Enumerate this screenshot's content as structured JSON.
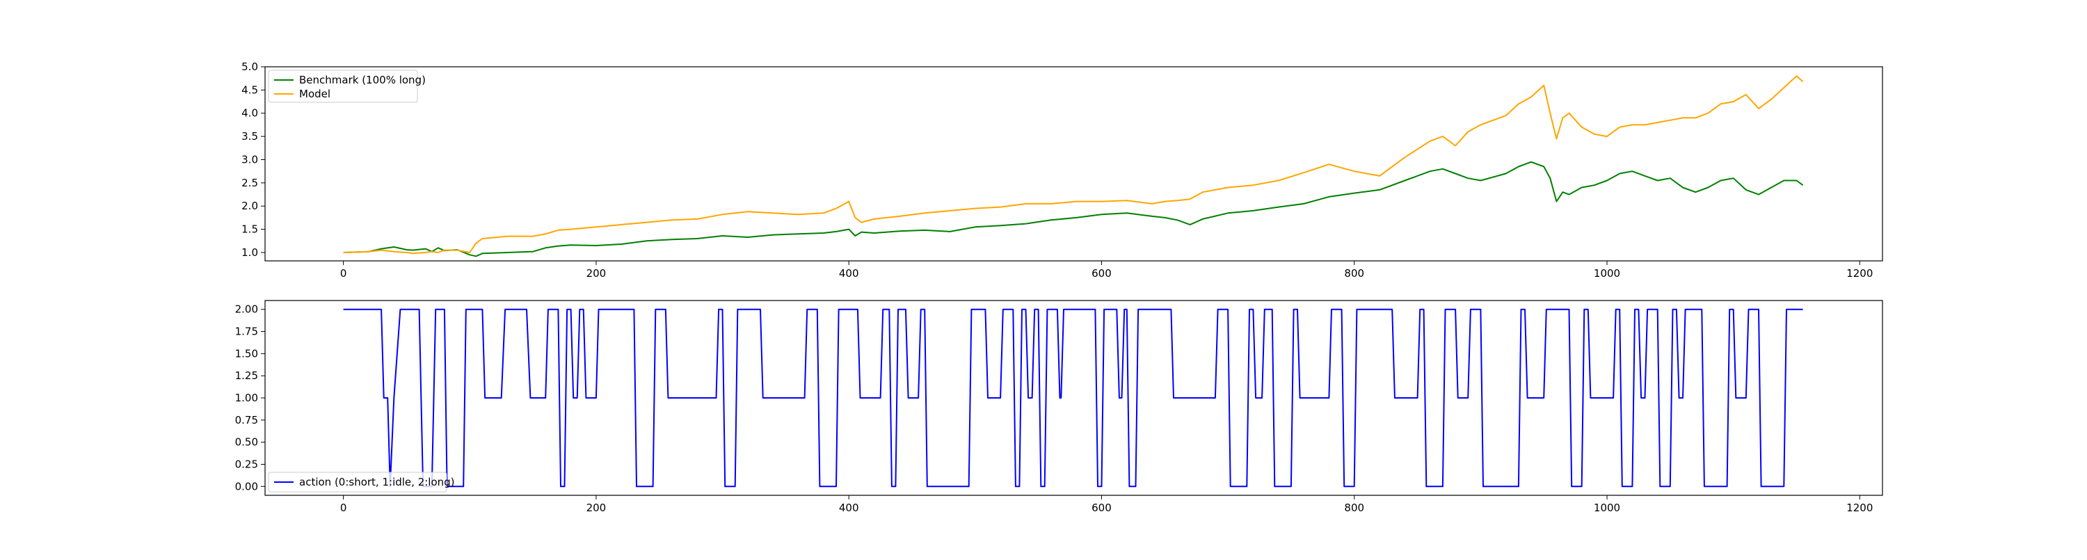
{
  "chart_data": [
    {
      "type": "line",
      "title": "",
      "xlabel": "",
      "ylabel": "",
      "xlim": [
        -62,
        1218
      ],
      "ylim": [
        0.82,
        5.0
      ],
      "x_ticks": [
        0,
        200,
        400,
        600,
        800,
        1000,
        1200
      ],
      "x_tick_labels": [
        "0",
        "200",
        "400",
        "600",
        "800",
        "1000",
        "1200"
      ],
      "y_ticks": [
        1.0,
        1.5,
        2.0,
        2.5,
        3.0,
        3.5,
        4.0,
        4.5,
        5.0
      ],
      "y_tick_labels": [
        "1.0",
        "1.5",
        "2.0",
        "2.5",
        "3.0",
        "3.5",
        "4.0",
        "4.5",
        "5.0"
      ],
      "legend_position": "top-left",
      "grid": false,
      "series": [
        {
          "name": "Benchmark (100% long)",
          "color": "#008000",
          "x": [
            0,
            20,
            30,
            40,
            50,
            55,
            65,
            70,
            75,
            80,
            90,
            100,
            105,
            110,
            130,
            150,
            160,
            170,
            180,
            200,
            220,
            240,
            260,
            280,
            300,
            320,
            340,
            360,
            380,
            390,
            400,
            405,
            410,
            420,
            440,
            460,
            480,
            500,
            520,
            540,
            560,
            580,
            600,
            620,
            640,
            650,
            660,
            670,
            680,
            700,
            720,
            740,
            760,
            780,
            800,
            820,
            840,
            860,
            870,
            880,
            890,
            900,
            920,
            930,
            940,
            950,
            955,
            960,
            965,
            970,
            980,
            990,
            1000,
            1010,
            1020,
            1030,
            1040,
            1050,
            1060,
            1070,
            1080,
            1090,
            1100,
            1110,
            1120,
            1130,
            1140,
            1150,
            1155
          ],
          "y": [
            1.0,
            1.02,
            1.08,
            1.12,
            1.06,
            1.05,
            1.08,
            1.02,
            1.1,
            1.04,
            1.06,
            0.95,
            0.92,
            0.98,
            1.0,
            1.02,
            1.1,
            1.14,
            1.16,
            1.15,
            1.18,
            1.25,
            1.28,
            1.3,
            1.36,
            1.33,
            1.38,
            1.4,
            1.42,
            1.45,
            1.5,
            1.36,
            1.44,
            1.42,
            1.46,
            1.48,
            1.45,
            1.55,
            1.58,
            1.62,
            1.7,
            1.75,
            1.82,
            1.85,
            1.78,
            1.75,
            1.7,
            1.6,
            1.72,
            1.85,
            1.9,
            1.98,
            2.05,
            2.2,
            2.28,
            2.35,
            2.55,
            2.75,
            2.8,
            2.7,
            2.6,
            2.55,
            2.7,
            2.85,
            2.95,
            2.85,
            2.6,
            2.1,
            2.3,
            2.25,
            2.4,
            2.45,
            2.55,
            2.7,
            2.75,
            2.65,
            2.55,
            2.6,
            2.4,
            2.3,
            2.4,
            2.55,
            2.6,
            2.35,
            2.25,
            2.4,
            2.55,
            2.55,
            2.45
          ]
        },
        {
          "name": "Model",
          "color": "#FFA500",
          "x": [
            0,
            20,
            30,
            40,
            50,
            55,
            65,
            70,
            75,
            80,
            90,
            100,
            105,
            110,
            130,
            150,
            160,
            170,
            180,
            200,
            220,
            240,
            260,
            280,
            300,
            320,
            340,
            360,
            380,
            390,
            400,
            405,
            410,
            420,
            440,
            460,
            480,
            500,
            520,
            540,
            560,
            580,
            600,
            620,
            640,
            650,
            660,
            670,
            680,
            700,
            720,
            740,
            760,
            780,
            800,
            820,
            840,
            860,
            870,
            880,
            890,
            900,
            920,
            930,
            940,
            950,
            955,
            960,
            965,
            970,
            980,
            990,
            1000,
            1010,
            1020,
            1030,
            1040,
            1050,
            1060,
            1070,
            1080,
            1090,
            1100,
            1110,
            1120,
            1130,
            1140,
            1150,
            1155
          ],
          "y": [
            1.0,
            1.02,
            1.05,
            1.02,
            1.0,
            0.98,
            1.0,
            1.02,
            1.0,
            1.05,
            1.05,
            1.0,
            1.2,
            1.3,
            1.35,
            1.35,
            1.4,
            1.48,
            1.5,
            1.55,
            1.6,
            1.65,
            1.7,
            1.72,
            1.82,
            1.88,
            1.85,
            1.82,
            1.85,
            1.95,
            2.1,
            1.75,
            1.65,
            1.72,
            1.78,
            1.85,
            1.9,
            1.95,
            1.98,
            2.05,
            2.05,
            2.1,
            2.1,
            2.12,
            2.05,
            2.1,
            2.12,
            2.15,
            2.3,
            2.4,
            2.45,
            2.55,
            2.72,
            2.9,
            2.75,
            2.65,
            3.05,
            3.4,
            3.5,
            3.3,
            3.6,
            3.75,
            3.95,
            4.2,
            4.35,
            4.6,
            4.0,
            3.45,
            3.9,
            4.0,
            3.7,
            3.55,
            3.5,
            3.7,
            3.75,
            3.75,
            3.8,
            3.85,
            3.9,
            3.9,
            4.0,
            4.2,
            4.25,
            4.4,
            4.1,
            4.3,
            4.55,
            4.8,
            4.68
          ]
        }
      ]
    },
    {
      "type": "line",
      "title": "",
      "xlabel": "",
      "ylabel": "",
      "xlim": [
        -62,
        1218
      ],
      "ylim": [
        -0.1,
        2.1
      ],
      "x_ticks": [
        0,
        200,
        400,
        600,
        800,
        1000,
        1200
      ],
      "x_tick_labels": [
        "0",
        "200",
        "400",
        "600",
        "800",
        "1000",
        "1200"
      ],
      "y_ticks": [
        0.0,
        0.25,
        0.5,
        0.75,
        1.0,
        1.25,
        1.5,
        1.75,
        2.0
      ],
      "y_tick_labels": [
        "0.00",
        "0.25",
        "0.50",
        "0.75",
        "1.00",
        "1.25",
        "1.50",
        "1.75",
        "2.00"
      ],
      "legend_position": "bottom-left",
      "grid": false,
      "series": [
        {
          "name": "action (0:short, 1:idle, 2:long)",
          "color": "#0000FF",
          "x": [
            0,
            30,
            32,
            35,
            37,
            40,
            45,
            60,
            63,
            70,
            73,
            80,
            82,
            95,
            97,
            110,
            112,
            125,
            128,
            145,
            148,
            160,
            162,
            170,
            172,
            175,
            177,
            180,
            182,
            185,
            187,
            190,
            192,
            200,
            202,
            230,
            232,
            245,
            247,
            255,
            257,
            295,
            297,
            300,
            302,
            310,
            312,
            330,
            332,
            365,
            367,
            375,
            377,
            390,
            392,
            407,
            409,
            425,
            427,
            432,
            434,
            437,
            439,
            445,
            447,
            455,
            457,
            460,
            462,
            495,
            497,
            508,
            510,
            520,
            522,
            530,
            532,
            535,
            537,
            540,
            542,
            545,
            547,
            550,
            552,
            555,
            557,
            565,
            567,
            568,
            570,
            595,
            597,
            600,
            602,
            612,
            614,
            616,
            618,
            620,
            622,
            627,
            629,
            655,
            657,
            690,
            692,
            700,
            702,
            715,
            717,
            720,
            722,
            727,
            729,
            735,
            737,
            750,
            752,
            755,
            757,
            780,
            782,
            790,
            792,
            800,
            802,
            830,
            832,
            850,
            852,
            855,
            857,
            870,
            872,
            880,
            882,
            890,
            892,
            900,
            902,
            930,
            932,
            935,
            937,
            950,
            952,
            970,
            972,
            980,
            982,
            985,
            987,
            1005,
            1007,
            1010,
            1012,
            1020,
            1022,
            1025,
            1027,
            1030,
            1032,
            1040,
            1042,
            1050,
            1052,
            1055,
            1057,
            1060,
            1062,
            1075,
            1077,
            1095,
            1097,
            1100,
            1102,
            1110,
            1112,
            1120,
            1122,
            1140,
            1142,
            1150,
            1152,
            1155
          ],
          "y": [
            2,
            2,
            1,
            1,
            0,
            1,
            2,
            2,
            0,
            0,
            2,
            2,
            0,
            0,
            2,
            2,
            1,
            1,
            2,
            2,
            1,
            1,
            2,
            2,
            0,
            0,
            2,
            2,
            1,
            1,
            2,
            2,
            1,
            1,
            2,
            2,
            0,
            0,
            2,
            2,
            1,
            1,
            2,
            2,
            0,
            0,
            2,
            2,
            1,
            1,
            2,
            2,
            0,
            0,
            2,
            2,
            1,
            1,
            2,
            2,
            0,
            0,
            2,
            2,
            1,
            1,
            2,
            2,
            0,
            0,
            2,
            2,
            1,
            1,
            2,
            2,
            0,
            0,
            2,
            2,
            1,
            1,
            2,
            2,
            0,
            0,
            2,
            2,
            1,
            1,
            2,
            2,
            0,
            0,
            2,
            2,
            1,
            1,
            2,
            2,
            0,
            0,
            2,
            2,
            1,
            1,
            2,
            2,
            0,
            0,
            2,
            2,
            1,
            1,
            2,
            2,
            0,
            0,
            2,
            2,
            1,
            1,
            2,
            2,
            0,
            0,
            2,
            2,
            1,
            1,
            2,
            2,
            0,
            0,
            2,
            2,
            1,
            1,
            2,
            2,
            0,
            0,
            2,
            2,
            1,
            1,
            2,
            2,
            0,
            0,
            2,
            2,
            1,
            1,
            2,
            2,
            0,
            0,
            2,
            2,
            1,
            1,
            2,
            2,
            0,
            0,
            2,
            2,
            1,
            1,
            2,
            2,
            0,
            0,
            2,
            2,
            1,
            1,
            2,
            2,
            0,
            0,
            2,
            2,
            2,
            2
          ]
        }
      ]
    }
  ]
}
